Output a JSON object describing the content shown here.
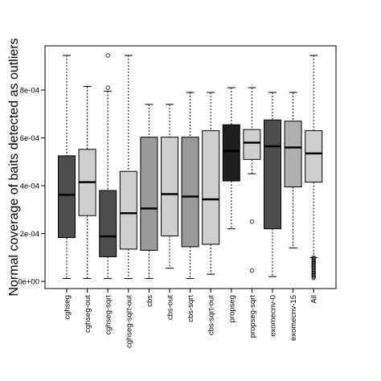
{
  "chart_data": {
    "type": "box",
    "title": "",
    "xlabel": "",
    "ylabel": "Normal coverage of baits detected as outliers",
    "ylim": [
      -3e-05,
      0.000985
    ],
    "yticks": [
      {
        "value": 0,
        "label": "0e+00"
      },
      {
        "value": 0.0002,
        "label": "2e-04"
      },
      {
        "value": 0.0004,
        "label": "4e-04"
      },
      {
        "value": 0.0006,
        "label": "6e-04"
      },
      {
        "value": 0.0008,
        "label": "8e-04"
      }
    ],
    "categories": [
      "cghseg",
      "cghseg-out",
      "cghseg-sqrt",
      "cghseg-sqrt-out",
      "cbs",
      "cbs-out",
      "cbs-sqrt",
      "cbs-sqrt-out",
      "propseg",
      "propseg-sqrt",
      "exomecnv-0",
      "exomecnv-15",
      "All"
    ],
    "colors": [
      "#4d4d4d",
      "#cfcfcf",
      "#4d4d4d",
      "#cfcfcf",
      "#9a9a9a",
      "#cfcfcf",
      "#9a9a9a",
      "#cfcfcf",
      "#1e1e1e",
      "#cfcfcf",
      "#4d4d4d",
      "#b0b0b0",
      "#cfcfcf"
    ],
    "boxes": [
      {
        "min": 1.2e-05,
        "q1": 0.000183,
        "median": 0.000362,
        "q3": 0.000525,
        "max": 0.000945,
        "outliers": []
      },
      {
        "min": 1.2e-05,
        "q1": 0.000275,
        "median": 0.000415,
        "q3": 0.000552,
        "max": 0.000815,
        "outliers": []
      },
      {
        "min": 1.2e-05,
        "q1": 0.000103,
        "median": 0.000188,
        "q3": 0.00038,
        "max": 0.000795,
        "outliers": [
          0.00081,
          0.000945
        ]
      },
      {
        "min": 1.2e-05,
        "q1": 0.000135,
        "median": 0.000285,
        "q3": 0.00046,
        "max": 0.000945,
        "outliers": []
      },
      {
        "min": 1.2e-05,
        "q1": 0.00013,
        "median": 0.000305,
        "q3": 0.000603,
        "max": 0.00074,
        "outliers": []
      },
      {
        "min": 5.5e-05,
        "q1": 0.00019,
        "median": 0.000365,
        "q3": 0.000603,
        "max": 0.00074,
        "outliers": []
      },
      {
        "min": 1.2e-05,
        "q1": 0.000145,
        "median": 0.000355,
        "q3": 0.000603,
        "max": 0.00079,
        "outliers": []
      },
      {
        "min": 3e-05,
        "q1": 0.000155,
        "median": 0.000343,
        "q3": 0.00063,
        "max": 0.00079,
        "outliers": []
      },
      {
        "min": 0.00022,
        "q1": 0.00042,
        "median": 0.000545,
        "q3": 0.000655,
        "max": 0.00081,
        "outliers": []
      },
      {
        "min": 0.00045,
        "q1": 0.00051,
        "median": 0.00058,
        "q3": 0.000635,
        "max": 0.00081,
        "outliers": [
          0.00025,
          4.5e-05
        ]
      },
      {
        "min": 2e-05,
        "q1": 0.00022,
        "median": 0.000565,
        "q3": 0.000675,
        "max": 0.00079,
        "outliers": []
      },
      {
        "min": 0.00014,
        "q1": 0.000395,
        "median": 0.00056,
        "q3": 0.00067,
        "max": 0.00079,
        "outliers": []
      },
      {
        "min": 0.0001,
        "q1": 0.000415,
        "median": 0.000535,
        "q3": 0.00063,
        "max": 0.000945,
        "outliers": [
          0.0001,
          9.5e-05,
          9e-05,
          8.5e-05,
          8e-05,
          7.5e-05,
          7e-05,
          6.5e-05,
          6e-05,
          5.5e-05,
          5e-05,
          4.5e-05,
          4e-05,
          3.5e-05,
          3e-05,
          2.5e-05,
          2e-05,
          1.5e-05
        ]
      }
    ],
    "grid": false,
    "legend": "none"
  }
}
